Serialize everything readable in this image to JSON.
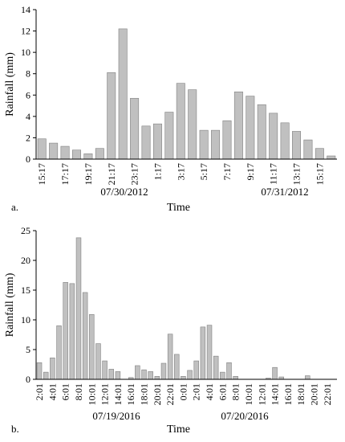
{
  "chart_data": [
    {
      "type": "bar",
      "panel_label": "a.",
      "x_label": "Time",
      "y_label": "Rainfall (mm)",
      "annotations": [
        "07/30/2012",
        "07/31/2012"
      ],
      "categories": [
        "15:17",
        null,
        "17:17",
        null,
        "19:17",
        null,
        "21:17",
        null,
        "23:17",
        null,
        "1:17",
        null,
        "3:17",
        null,
        "5:17",
        null,
        "7:17",
        null,
        "9:17",
        null,
        "11:17",
        null,
        "13:17",
        null,
        "15:17",
        null
      ],
      "values": [
        1.9,
        1.5,
        1.2,
        0.85,
        0.5,
        1.0,
        8.1,
        12.2,
        5.7,
        3.1,
        3.3,
        4.4,
        7.1,
        6.5,
        2.7,
        2.7,
        3.6,
        6.3,
        5.9,
        5.1,
        4.3,
        3.4,
        2.6,
        1.8,
        1.0,
        0.3
      ],
      "color": "#c0c0c0",
      "ylim": [
        0,
        14
      ],
      "yticks": [
        0,
        2,
        4,
        6,
        8,
        10,
        12,
        14
      ],
      "grid": false
    },
    {
      "type": "bar",
      "panel_label": "b.",
      "x_label": "Time",
      "y_label": "Rainfall (mm)",
      "annotations": [
        "07/19/2016",
        "07/20/2016"
      ],
      "categories": [
        "2:01",
        null,
        "4:01",
        null,
        "6:01",
        null,
        "8:01",
        null,
        "10:01",
        null,
        "12:01",
        null,
        "14:01",
        null,
        "16:01",
        null,
        "18:01",
        null,
        "20:01",
        null,
        "22:01",
        null,
        "0:01",
        null,
        "2:01",
        null,
        "4:01",
        null,
        "6:01",
        null,
        "8:01",
        null,
        "10:01",
        null,
        "12:01",
        null,
        "14:01",
        null,
        "16:01",
        null,
        "18:01",
        null,
        "20:01",
        null,
        "22:01",
        null
      ],
      "values": [
        2.8,
        1.2,
        3.6,
        9.0,
        16.3,
        16.1,
        23.8,
        14.6,
        10.9,
        6.0,
        3.1,
        1.7,
        1.3,
        0,
        0.3,
        2.3,
        1.6,
        1.3,
        0.5,
        2.7,
        7.6,
        4.2,
        0.5,
        1.5,
        3.1,
        8.8,
        9.1,
        3.9,
        1.2,
        2.8,
        0.5,
        0,
        0,
        0,
        0,
        0.2,
        2.0,
        0.4,
        0,
        0,
        0,
        0.6,
        0,
        0,
        0,
        0
      ],
      "color": "#c0c0c0",
      "ylim": [
        0,
        25
      ],
      "yticks": [
        0,
        5,
        10,
        15,
        20,
        25
      ],
      "grid": false
    }
  ]
}
